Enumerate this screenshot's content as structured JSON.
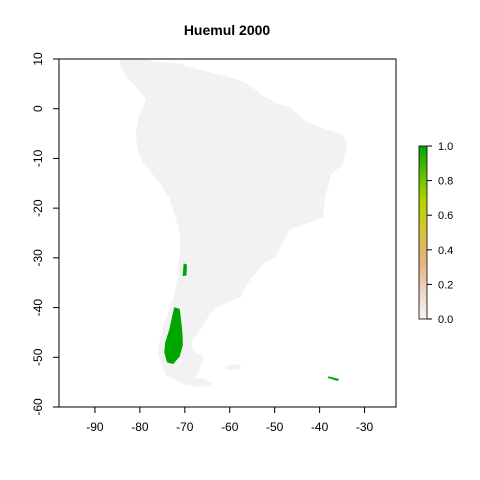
{
  "chart_data": {
    "type": "heatmap",
    "title": "Huemul 2000",
    "xlim": [
      -98,
      -23
    ],
    "ylim": [
      -60,
      10
    ],
    "x_ticks": [
      -90,
      -80,
      -70,
      -60,
      -50,
      -40,
      -30
    ],
    "y_ticks": [
      10,
      0,
      -10,
      -20,
      -30,
      -40,
      -50,
      -60
    ],
    "x_tick_labels": [
      "-90",
      "-80",
      "-70",
      "-60",
      "-50",
      "-40",
      "-30"
    ],
    "y_tick_labels": [
      "10",
      "0",
      "-10",
      "-20",
      "-30",
      "-40",
      "-50",
      "-60"
    ],
    "grid": false,
    "background_land_color": "#f2f2f2",
    "colorbar": {
      "range": [
        0,
        1
      ],
      "ticks": [
        1.0,
        0.8,
        0.6,
        0.4,
        0.2,
        0.0
      ],
      "tick_labels": [
        "1.0",
        "0.8",
        "0.6",
        "0.4",
        "0.2",
        "0.0"
      ],
      "colors": [
        "#f5f5f5",
        "#eed3c1",
        "#e5b37e",
        "#d9c23b",
        "#b7d500",
        "#61c000",
        "#00a600"
      ]
    },
    "presence_regions": [
      {
        "label": "central Chile patch",
        "value": 1.0,
        "outline": [
          [
            -70.2,
            -31.2
          ],
          [
            -69.6,
            -31.4
          ],
          [
            -69.7,
            -33.5
          ],
          [
            -70.4,
            -33.6
          ]
        ]
      },
      {
        "label": "Patagonia main range",
        "value": 1.0,
        "outline": [
          [
            -72.3,
            -40.0
          ],
          [
            -71.2,
            -40.3
          ],
          [
            -70.9,
            -42.5
          ],
          [
            -70.6,
            -45.0
          ],
          [
            -70.5,
            -47.5
          ],
          [
            -71.2,
            -49.8
          ],
          [
            -72.6,
            -51.3
          ],
          [
            -73.9,
            -51.0
          ],
          [
            -74.5,
            -49.0
          ],
          [
            -74.3,
            -47.0
          ],
          [
            -73.4,
            -44.5
          ],
          [
            -72.8,
            -42.0
          ]
        ]
      },
      {
        "label": "South Georgia",
        "value": 1.0,
        "outline": [
          [
            -38.0,
            -53.9
          ],
          [
            -35.8,
            -54.4
          ],
          [
            -36.0,
            -54.7
          ],
          [
            -38.1,
            -54.1
          ]
        ]
      }
    ]
  }
}
